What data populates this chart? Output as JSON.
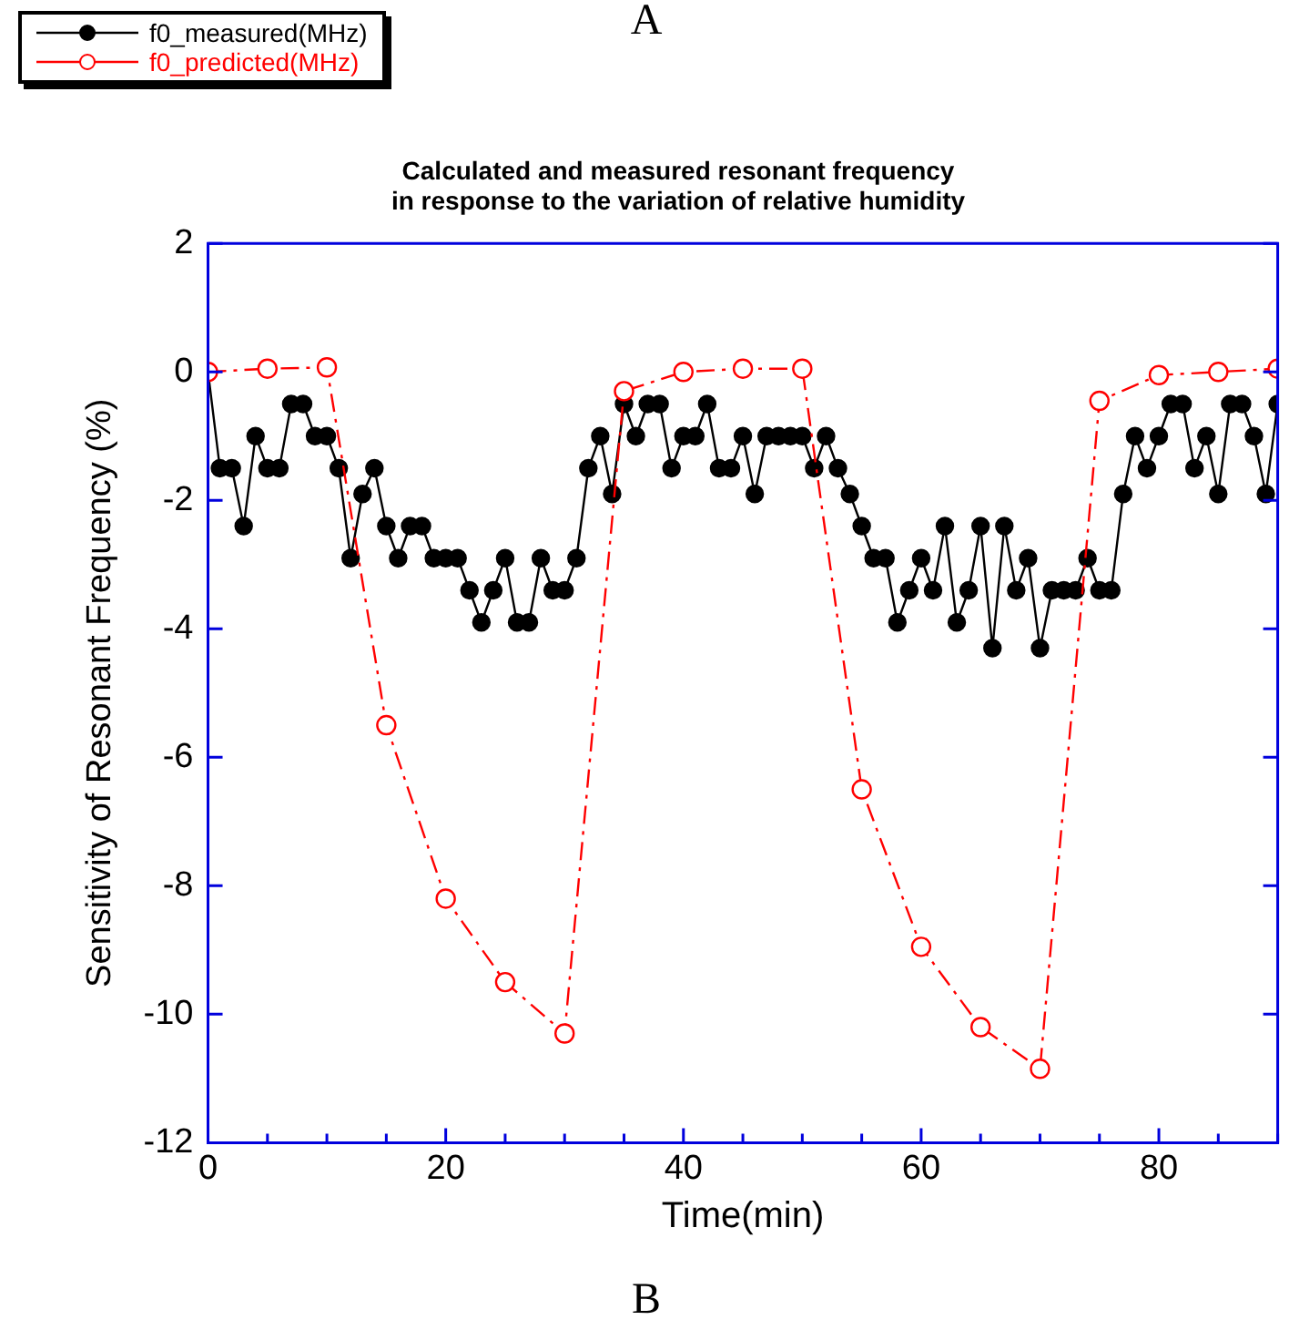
{
  "chart_data": {
    "type": "line",
    "title": "Calculated and measured resonant frequency\nin response to the variation of relative humidity",
    "xlabel": "Time(min)",
    "ylabel": "Sensitivity of Resonant Frequency (%)",
    "annotations": [
      "A",
      "B"
    ],
    "xlim": [
      0,
      90
    ],
    "xticks": [
      0,
      {
        "value": 5,
        "label": null
      },
      {
        "value": 10,
        "label": null
      },
      {
        "value": 15,
        "label": null
      },
      20,
      {
        "value": 25,
        "label": null
      },
      {
        "value": 30,
        "label": null
      },
      {
        "value": 35,
        "label": null
      },
      40,
      {
        "value": 45,
        "label": null
      },
      {
        "value": 50,
        "label": null
      },
      {
        "value": 55,
        "label": null
      },
      60,
      {
        "value": 65,
        "label": null
      },
      {
        "value": 70,
        "label": null
      },
      {
        "value": 75,
        "label": null
      },
      80,
      {
        "value": 85,
        "label": null
      },
      {
        "value": 90,
        "label": null
      }
    ],
    "ylim": [
      -12,
      2
    ],
    "yticks": [
      -12,
      -10,
      -8,
      -6,
      -4,
      -2,
      0,
      2
    ],
    "grid": false,
    "legend": "top left",
    "series": [
      {
        "name": "f0_measured(MHz)",
        "color": "#000000",
        "marker": "circle",
        "line_style": "solid",
        "x": [
          0,
          1,
          2,
          3,
          4,
          5,
          6,
          7,
          8,
          9,
          10,
          11,
          12,
          13,
          14,
          15,
          16,
          17,
          18,
          19,
          20,
          21,
          22,
          23,
          24,
          25,
          26,
          27,
          28,
          29,
          30,
          31,
          32,
          33,
          34,
          35,
          36,
          37,
          38,
          39,
          40,
          41,
          42,
          43,
          44,
          45,
          46,
          47,
          48,
          49,
          50,
          51,
          52,
          53,
          54,
          55,
          56,
          57,
          58,
          59,
          60,
          61,
          62,
          63,
          64,
          65,
          66,
          67,
          68,
          69,
          70,
          71,
          72,
          73,
          74,
          75,
          76,
          77,
          78,
          79,
          80,
          81,
          82,
          83,
          84,
          85,
          86,
          87,
          88,
          89,
          90
        ],
        "values": [
          0,
          -1.5,
          -1.5,
          -2.4,
          -1,
          -1.5,
          -1.5,
          -0.5,
          -0.5,
          -1,
          -1,
          -1.5,
          -2.9,
          -1.9,
          -1.5,
          -2.4,
          -2.9,
          -2.4,
          -2.4,
          -2.9,
          -2.9,
          -2.9,
          -3.4,
          -3.9,
          -3.4,
          -2.9,
          -3.9,
          -3.9,
          -2.9,
          -3.4,
          -3.4,
          -2.9,
          -1.5,
          -1,
          -1.9,
          -0.5,
          -1,
          -0.5,
          -0.5,
          -1.5,
          -1,
          -1,
          -0.5,
          -1.5,
          -1.5,
          -1,
          -1.9,
          -1,
          -1,
          -1,
          -1,
          -1.5,
          -1,
          -1.5,
          -1.9,
          -2.4,
          -2.9,
          -2.9,
          -3.9,
          -3.4,
          -2.9,
          -3.4,
          -2.4,
          -3.9,
          -3.4,
          -2.4,
          -4.3,
          -2.4,
          -3.4,
          -2.9,
          -4.3,
          -3.4,
          -3.4,
          -3.4,
          -2.9,
          -3.4,
          -3.4,
          -1.9,
          -1,
          -1.5,
          -1,
          -0.5,
          -0.5,
          -1.5,
          -1,
          -1.9,
          -0.5,
          -0.5,
          -1,
          -1.9,
          -0.5
        ]
      },
      {
        "name": "f0_predicted(MHz)",
        "color": "#ff0000",
        "marker": "circle",
        "line_style": "dashed",
        "x": [
          0,
          5,
          10,
          15,
          20,
          25,
          30,
          35,
          40,
          45,
          50,
          55,
          60,
          65,
          70,
          75,
          80,
          85,
          90
        ],
        "values": [
          0,
          0.05,
          0.07,
          -5.5,
          -8.2,
          -9.5,
          -10.3,
          -0.3,
          0,
          0.05,
          0.05,
          -6.5,
          -8.95,
          -10.2,
          -10.85,
          -0.45,
          -0.05,
          0,
          0.05
        ]
      }
    ]
  }
}
